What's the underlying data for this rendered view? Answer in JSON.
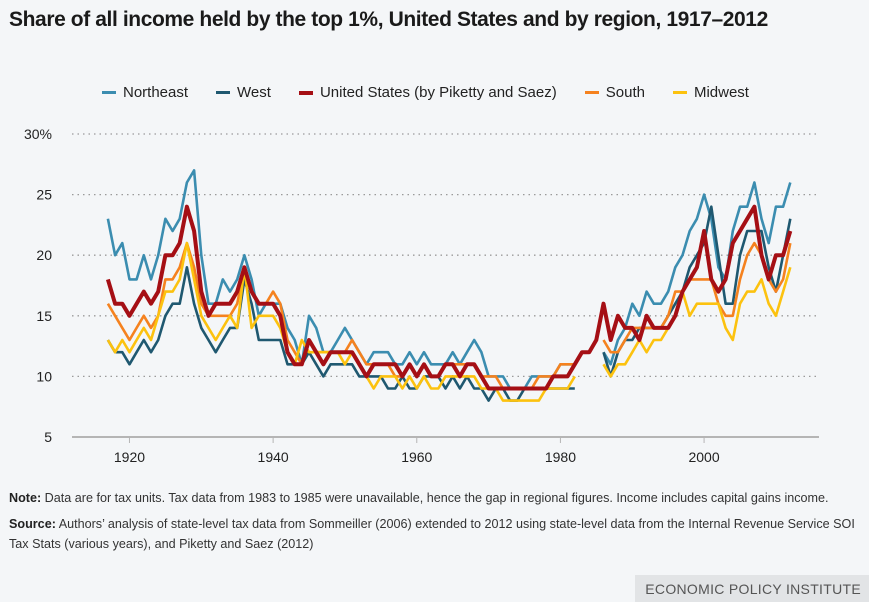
{
  "chart_data": {
    "type": "line",
    "title": "Share of all income held by the top 1%, United States and by region, 1917–2012",
    "xlabel": "",
    "ylabel": "",
    "xlim": [
      1912,
      2016
    ],
    "ylim": [
      5,
      30
    ],
    "x_ticks": [
      "1920",
      "1940",
      "1960",
      "1980",
      "2000"
    ],
    "y_ticks": [
      "30%",
      "25",
      "20",
      "15",
      "10",
      "5"
    ],
    "grid": true,
    "legend_position": "top",
    "series": [
      {
        "name": "Northeast",
        "color": "#3b8db0",
        "segments": [
          {
            "start": 1917,
            "values": [
              23,
              20,
              21,
              18,
              18,
              20,
              18,
              20,
              23,
              22,
              23,
              26,
              27,
              20,
              16,
              16,
              18,
              17,
              18,
              20,
              18,
              15,
              16,
              16,
              16,
              14,
              13,
              11,
              15,
              14,
              12,
              12,
              13,
              14,
              13,
              12,
              11,
              12,
              12,
              12,
              11,
              11,
              12,
              11,
              12,
              11,
              11,
              11,
              12,
              11,
              12,
              13,
              12,
              10,
              10,
              10,
              9,
              9,
              9,
              10,
              10,
              10,
              10,
              11,
              11,
              11
            ]
          },
          {
            "start": 1986,
            "values": [
              12,
              11,
              13,
              14,
              16,
              15,
              17,
              16,
              16,
              17,
              19,
              20,
              22,
              23,
              25,
              23,
              19,
              18,
              22,
              24,
              24,
              26,
              23,
              21,
              24,
              24,
              26
            ]
          }
        ]
      },
      {
        "name": "West",
        "color": "#1f5870",
        "segments": [
          {
            "start": 1917,
            "values": [
              13,
              12,
              12,
              11,
              12,
              13,
              12,
              13,
              15,
              16,
              16,
              19,
              16,
              14,
              13,
              12,
              13,
              14,
              14,
              18,
              16,
              13,
              13,
              13,
              13,
              11,
              11,
              11,
              12,
              11,
              10,
              11,
              11,
              11,
              11,
              10,
              10,
              10,
              10,
              9,
              9,
              10,
              9,
              9,
              10,
              10,
              10,
              9,
              10,
              9,
              10,
              9,
              9,
              8,
              9,
              9,
              8,
              8,
              9,
              9,
              9,
              9,
              9,
              9,
              9,
              9
            ]
          },
          {
            "start": 1986,
            "values": [
              12,
              10,
              12,
              13,
              13,
              14,
              14,
              14,
              14,
              15,
              16,
              17,
              19,
              20,
              21,
              24,
              20,
              16,
              16,
              20,
              22,
              22,
              22,
              19,
              17,
              20,
              23
            ]
          }
        ]
      },
      {
        "name": "United States (by Piketty and Saez)",
        "color": "#a50f15",
        "segments": [
          {
            "start": 1917,
            "values": [
              18,
              16,
              16,
              15,
              16,
              17,
              16,
              17,
              20,
              20,
              21,
              24,
              22,
              17,
              15,
              16,
              16,
              16,
              17,
              19,
              17,
              16,
              16,
              16,
              15,
              12,
              11,
              11,
              13,
              12,
              11,
              12,
              12,
              12,
              12,
              11,
              10,
              11,
              11,
              11,
              11,
              10,
              11,
              10,
              11,
              10,
              10,
              11,
              11,
              10,
              11,
              11,
              10,
              9,
              9,
              9,
              9,
              9,
              9,
              9,
              9,
              9,
              10,
              10,
              10,
              11,
              12,
              12,
              13,
              16,
              13,
              15,
              14,
              14,
              13,
              15,
              14,
              14,
              14,
              15,
              17,
              18,
              19,
              22,
              18,
              17,
              18,
              21,
              22,
              23,
              24,
              20,
              18,
              20,
              20,
              22
            ]
          }
        ]
      },
      {
        "name": "South",
        "color": "#f5821f",
        "segments": [
          {
            "start": 1917,
            "values": [
              16,
              15,
              14,
              13,
              14,
              15,
              14,
              15,
              18,
              18,
              19,
              21,
              19,
              16,
              15,
              15,
              15,
              15,
              16,
              19,
              17,
              16,
              16,
              17,
              16,
              13,
              12,
              11,
              13,
              12,
              12,
              12,
              12,
              12,
              13,
              12,
              11,
              11,
              11,
              11,
              10,
              10,
              11,
              10,
              11,
              10,
              10,
              11,
              11,
              11,
              11,
              11,
              10,
              10,
              10,
              9,
              9,
              9,
              9,
              9,
              10,
              10,
              10,
              11,
              11,
              11
            ]
          },
          {
            "start": 1986,
            "values": [
              13,
              12,
              12,
              13,
              14,
              14,
              14,
              14,
              14,
              15,
              17,
              17,
              18,
              18,
              18,
              18,
              16,
              15,
              15,
              18,
              20,
              21,
              20,
              18,
              17,
              18,
              21
            ]
          }
        ]
      },
      {
        "name": "Midwest",
        "color": "#fcc20f",
        "segments": [
          {
            "start": 1917,
            "values": [
              13,
              12,
              13,
              12,
              13,
              14,
              13,
              15,
              17,
              17,
              18,
              21,
              18,
              15,
              14,
              13,
              14,
              15,
              14,
              19,
              14,
              15,
              15,
              15,
              14,
              12,
              11,
              13,
              12,
              12,
              12,
              12,
              12,
              11,
              12,
              11,
              10,
              9,
              10,
              10,
              10,
              9,
              10,
              9,
              10,
              9,
              9,
              10,
              10,
              10,
              10,
              10,
              9,
              9,
              9,
              8,
              8,
              8,
              8,
              8,
              8,
              9,
              9,
              9,
              9,
              10
            ]
          },
          {
            "start": 1986,
            "values": [
              11,
              10,
              11,
              11,
              12,
              13,
              12,
              13,
              13,
              14,
              15,
              17,
              15,
              16,
              16,
              16,
              16,
              14,
              13,
              16,
              17,
              17,
              18,
              16,
              15,
              17,
              19
            ]
          }
        ]
      }
    ]
  },
  "legend_order": [
    0,
    1,
    2,
    3,
    4
  ],
  "notes": {
    "note_label": "Note:",
    "note_text": " Data are for tax units. Tax data from 1983 to 1985 were unavailable, hence the gap in regional figures. Income includes capital gains income.",
    "source_label": "Source:",
    "source_text": " Authors’ analysis of state-level tax data from Sommeiller (2006) extended to 2012 using state-level data from the Internal Revenue Service SOI Tax Stats (various years), and Piketty and Saez (2012)"
  },
  "branding": "ECONOMIC POLICY INSTITUTE"
}
